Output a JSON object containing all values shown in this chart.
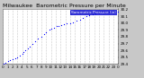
{
  "title": "Milwaukee  Barometric Pressure per Minute",
  "outer_bg": "#c8c8c8",
  "plot_bg": "#ffffff",
  "dot_color": "#0000ff",
  "legend_bg": "#0000cc",
  "legend_text": "Barometric Pressure (in)",
  "ylim": [
    29.4,
    30.2
  ],
  "xlim": [
    0,
    1440
  ],
  "y_ticks": [
    29.4,
    29.5,
    29.6,
    29.7,
    29.8,
    29.9,
    30.0,
    30.1,
    30.2
  ],
  "y_tick_labels": [
    "29.4",
    "29.5",
    "29.6",
    "29.7",
    "29.8",
    "29.9",
    "30.0",
    "30.1",
    "30.2"
  ],
  "x_ticks": [
    0,
    60,
    120,
    180,
    240,
    300,
    360,
    420,
    480,
    540,
    600,
    660,
    720,
    780,
    840,
    900,
    960,
    1020,
    1080,
    1140,
    1200,
    1260,
    1320,
    1380,
    1440
  ],
  "x_tick_labels": [
    "0",
    "1",
    "2",
    "3",
    "4",
    "5",
    "6",
    "7",
    "8",
    "9",
    "10",
    "11",
    "12",
    "13",
    "14",
    "15",
    "16",
    "17",
    "18",
    "19",
    "20",
    "21",
    "22",
    "23",
    "0"
  ],
  "data_x": [
    10,
    30,
    60,
    90,
    120,
    150,
    180,
    210,
    240,
    260,
    280,
    310,
    340,
    370,
    400,
    440,
    480,
    510,
    540,
    580,
    610,
    640,
    670,
    700,
    730,
    760,
    800,
    840,
    880,
    920,
    960,
    1000,
    1040,
    1080,
    1120,
    1160,
    1200,
    1240,
    1280,
    1320,
    1360,
    1400,
    1440
  ],
  "data_y": [
    29.41,
    29.42,
    29.44,
    29.46,
    29.47,
    29.48,
    29.5,
    29.52,
    29.55,
    29.57,
    29.6,
    29.63,
    29.66,
    29.7,
    29.73,
    29.77,
    29.8,
    29.84,
    29.87,
    29.9,
    29.92,
    29.93,
    29.95,
    29.96,
    29.97,
    29.98,
    29.99,
    30.0,
    30.01,
    30.03,
    30.05,
    30.08,
    30.1,
    30.12,
    30.13,
    30.14,
    30.15,
    30.16,
    30.16,
    30.17,
    30.17,
    30.17,
    30.17
  ],
  "title_fontsize": 4.5,
  "tick_fontsize": 3.0,
  "dot_size": 0.8,
  "grid_color": "#999999",
  "legend_fontsize": 3.0
}
